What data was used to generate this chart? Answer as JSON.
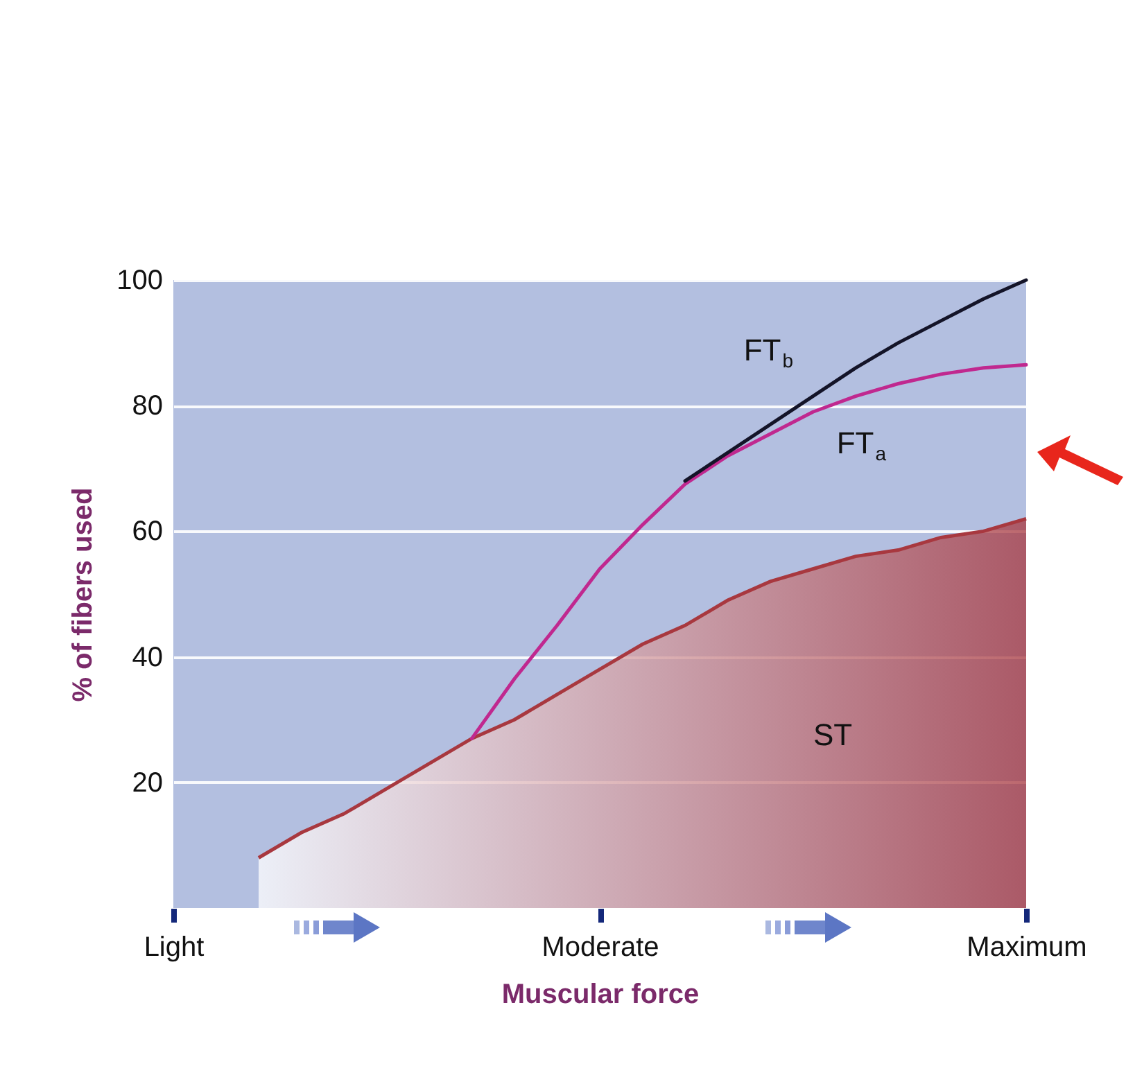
{
  "chart_data": {
    "type": "line",
    "xlabel": "Muscular force",
    "ylabel": "% of fibers used",
    "categories": [
      "Light",
      null,
      null,
      null,
      null,
      null,
      null,
      null,
      null,
      null,
      "Moderate",
      null,
      null,
      null,
      null,
      null,
      null,
      null,
      null,
      null,
      "Maximum"
    ],
    "ylim": [
      0,
      100
    ],
    "yticks": [
      20,
      40,
      60,
      80,
      100
    ],
    "grid": "y",
    "legend": false,
    "marker": "none",
    "line_style": "solid",
    "series": [
      {
        "name": "ST",
        "type": "area",
        "color": "#a8383f",
        "values": [
          null,
          null,
          8,
          12,
          15,
          19,
          23,
          27,
          30,
          34,
          38,
          42,
          45,
          49,
          52,
          54,
          56,
          57,
          59,
          60,
          62
        ]
      },
      {
        "name": "FT$_{a}$",
        "color": "#c0288f",
        "values": [
          null,
          null,
          null,
          null,
          null,
          null,
          null,
          27,
          36.5,
          45,
          54,
          61,
          67.5,
          72,
          75.5,
          79,
          81.5,
          83.5,
          85,
          86,
          86.5
        ]
      },
      {
        "name": "FT$_{b}$",
        "color": "#141428",
        "values": [
          null,
          null,
          null,
          null,
          null,
          null,
          null,
          null,
          null,
          null,
          null,
          null,
          68,
          72.5,
          77,
          81.5,
          86,
          90,
          93.5,
          97,
          100
        ]
      }
    ]
  }
}
